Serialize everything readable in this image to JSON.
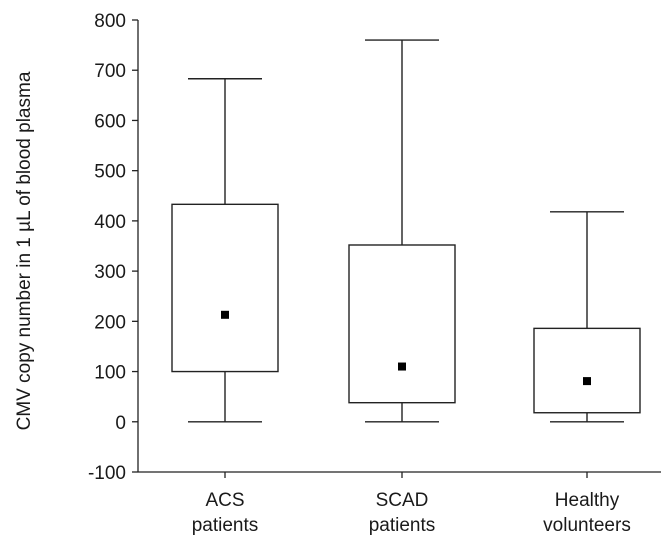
{
  "chart_data": {
    "type": "boxplot",
    "ylabel": "CMV copy number in 1 µL of blood plasma",
    "ylim": [
      -100,
      800
    ],
    "yticks": [
      800,
      700,
      600,
      500,
      400,
      300,
      200,
      100,
      0,
      -100
    ],
    "grid": false,
    "categories": [
      [
        "ACS",
        "patients"
      ],
      [
        "SCAD",
        "patients"
      ],
      [
        "Healthy",
        "volunteers"
      ]
    ],
    "boxes": [
      {
        "category": "ACS patients",
        "min": 0,
        "q1": 100,
        "center": 213,
        "q3": 433,
        "max": 683
      },
      {
        "category": "SCAD patients",
        "min": 0,
        "q1": 38,
        "center": 110,
        "q3": 352,
        "max": 760
      },
      {
        "category": "Healthy volunteers",
        "min": 0,
        "q1": 18,
        "center": 81,
        "q3": 186,
        "max": 418
      }
    ]
  }
}
